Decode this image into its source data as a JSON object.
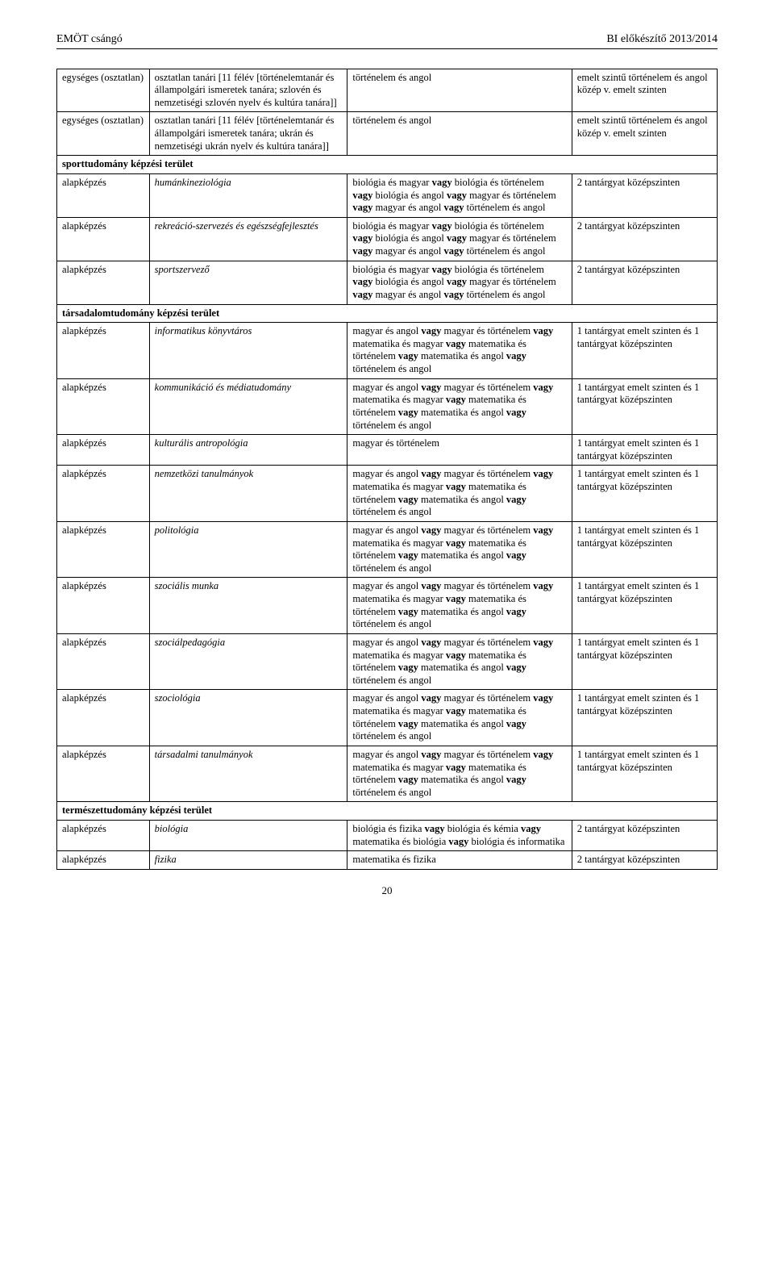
{
  "header": {
    "left": "EMÖT csángó",
    "right": "BI előkészítő 2013/2014"
  },
  "page_number": "20",
  "rows": [
    {
      "c1": "egységes (osztatlan)",
      "c2_html": "osztatlan tanári [11 félév [történelemtanár és állampolgári ismeretek tanára; szlovén és nemzetiségi szlovén nyelv és kultúra tanára]]",
      "c2_italic": false,
      "c3_html": "történelem és angol",
      "c4_html": "emelt szintű történelem és angol közép v. emelt szinten"
    },
    {
      "c1": "egységes (osztatlan)",
      "c2_html": "osztatlan tanári [11 félév [történelemtanár és állampolgári ismeretek tanára; ukrán és nemzetiségi ukrán nyelv és kultúra tanára]]",
      "c2_italic": false,
      "c3_html": "történelem és angol",
      "c4_html": "emelt szintű történelem és angol közép v. emelt szinten"
    },
    {
      "section": "sporttudomány képzési terület"
    },
    {
      "c1": "alapképzés",
      "c2_html": "humánkineziológia",
      "c2_italic": true,
      "c3_html": "biológia és magyar <strong>vagy</strong> biológia és történelem <strong>vagy</strong> biológia és angol <strong>vagy</strong> magyar és történelem <strong>vagy</strong> magyar és angol <strong>vagy</strong> történelem és angol",
      "c4_html": "2 tantárgyat középszinten"
    },
    {
      "c1": "alapképzés",
      "c2_html": "rekreáció-szervezés és egészségfejlesztés",
      "c2_italic": true,
      "c3_html": "biológia és magyar <strong>vagy</strong> biológia és történelem <strong>vagy</strong> biológia és angol <strong>vagy</strong> magyar és történelem <strong>vagy</strong> magyar és angol <strong>vagy</strong> történelem és angol",
      "c4_html": "2 tantárgyat középszinten"
    },
    {
      "c1": "alapképzés",
      "c2_html": "sportszervező",
      "c2_italic": true,
      "c3_html": "biológia és magyar <strong>vagy</strong> biológia és történelem <strong>vagy</strong> biológia és angol <strong>vagy</strong> magyar és történelem <strong>vagy</strong> magyar és angol <strong>vagy</strong> történelem és angol",
      "c4_html": "2 tantárgyat középszinten"
    },
    {
      "section": "társadalomtudomány képzési terület"
    },
    {
      "c1": "alapképzés",
      "c2_html": "informatikus könyvtáros",
      "c2_italic": true,
      "c3_html": "magyar és angol <strong>vagy</strong> magyar és történelem <strong>vagy</strong> matematika és magyar <strong>vagy</strong> matematika és történelem <strong>vagy</strong> matematika és angol <strong>vagy</strong> történelem és angol",
      "c4_html": "1 tantárgyat emelt szinten és 1 tantárgyat középszinten"
    },
    {
      "c1": "alapképzés",
      "c2_html": "kommunikáció és médiatudomány",
      "c2_italic": true,
      "c3_html": "magyar és angol <strong>vagy</strong> magyar és történelem <strong>vagy</strong> matematika és magyar <strong>vagy</strong> matematika és történelem <strong>vagy</strong> matematika és angol <strong>vagy</strong> történelem és angol",
      "c4_html": "1 tantárgyat emelt szinten és 1 tantárgyat középszinten"
    },
    {
      "c1": "alapképzés",
      "c2_html": "kulturális antropológia",
      "c2_italic": true,
      "c3_html": "magyar és történelem",
      "c4_html": "1 tantárgyat emelt szinten és 1 tantárgyat középszinten"
    },
    {
      "c1": "alapképzés",
      "c2_html": "nemzetközi tanulmányok",
      "c2_italic": true,
      "c3_html": "magyar és angol <strong>vagy</strong> magyar és történelem <strong>vagy</strong> matematika és magyar <strong>vagy</strong> matematika és történelem <strong>vagy</strong> matematika és angol <strong>vagy</strong> történelem és angol",
      "c4_html": "1 tantárgyat emelt szinten és 1 tantárgyat középszinten"
    },
    {
      "c1": "alapképzés",
      "c2_html": "politológia",
      "c2_italic": true,
      "c3_html": "magyar és angol <strong>vagy</strong> magyar és történelem <strong>vagy</strong> matematika és magyar <strong>vagy</strong> matematika és történelem <strong>vagy</strong> matematika és angol <strong>vagy</strong> történelem és angol",
      "c4_html": "1 tantárgyat emelt szinten és 1 tantárgyat középszinten"
    },
    {
      "c1": "alapképzés",
      "c2_html": "szociális munka",
      "c2_italic": true,
      "c3_html": "magyar és angol <strong>vagy</strong> magyar és történelem <strong>vagy</strong> matematika és magyar <strong>vagy</strong> matematika és történelem <strong>vagy</strong> matematika és angol <strong>vagy</strong> történelem és angol",
      "c4_html": "1 tantárgyat emelt szinten és 1 tantárgyat középszinten"
    },
    {
      "c1": "alapképzés",
      "c2_html": "szociálpedagógia",
      "c2_italic": true,
      "c3_html": "magyar és angol <strong>vagy</strong> magyar és történelem <strong>vagy</strong> matematika és magyar <strong>vagy</strong> matematika és történelem <strong>vagy</strong> matematika és angol <strong>vagy</strong> történelem és angol",
      "c4_html": "1 tantárgyat emelt szinten és 1 tantárgyat középszinten"
    },
    {
      "c1": "alapképzés",
      "c2_html": "szociológia",
      "c2_italic": true,
      "c3_html": "magyar és angol <strong>vagy</strong> magyar és történelem <strong>vagy</strong> matematika és magyar <strong>vagy</strong> matematika és történelem <strong>vagy</strong> matematika és angol <strong>vagy</strong> történelem és angol",
      "c4_html": "1 tantárgyat emelt szinten és 1 tantárgyat középszinten"
    },
    {
      "c1": "alapképzés",
      "c2_html": "társadalmi tanulmányok",
      "c2_italic": true,
      "c3_html": "magyar és angol <strong>vagy</strong> magyar és történelem <strong>vagy</strong> matematika és magyar <strong>vagy</strong> matematika és történelem <strong>vagy</strong> matematika és angol <strong>vagy</strong> történelem és angol",
      "c4_html": "1 tantárgyat emelt szinten és 1 tantárgyat középszinten"
    },
    {
      "section": "természettudomány képzési terület"
    },
    {
      "c1": "alapképzés",
      "c2_html": "biológia",
      "c2_italic": true,
      "c3_html": "biológia és fizika <strong>vagy</strong> biológia és kémia <strong>vagy</strong> matematika és biológia <strong>vagy</strong> biológia és informatika",
      "c4_html": "2 tantárgyat középszinten"
    },
    {
      "c1": "alapképzés",
      "c2_html": "fizika",
      "c2_italic": true,
      "c3_html": "matematika és fizika",
      "c4_html": "2 tantárgyat középszinten"
    }
  ]
}
